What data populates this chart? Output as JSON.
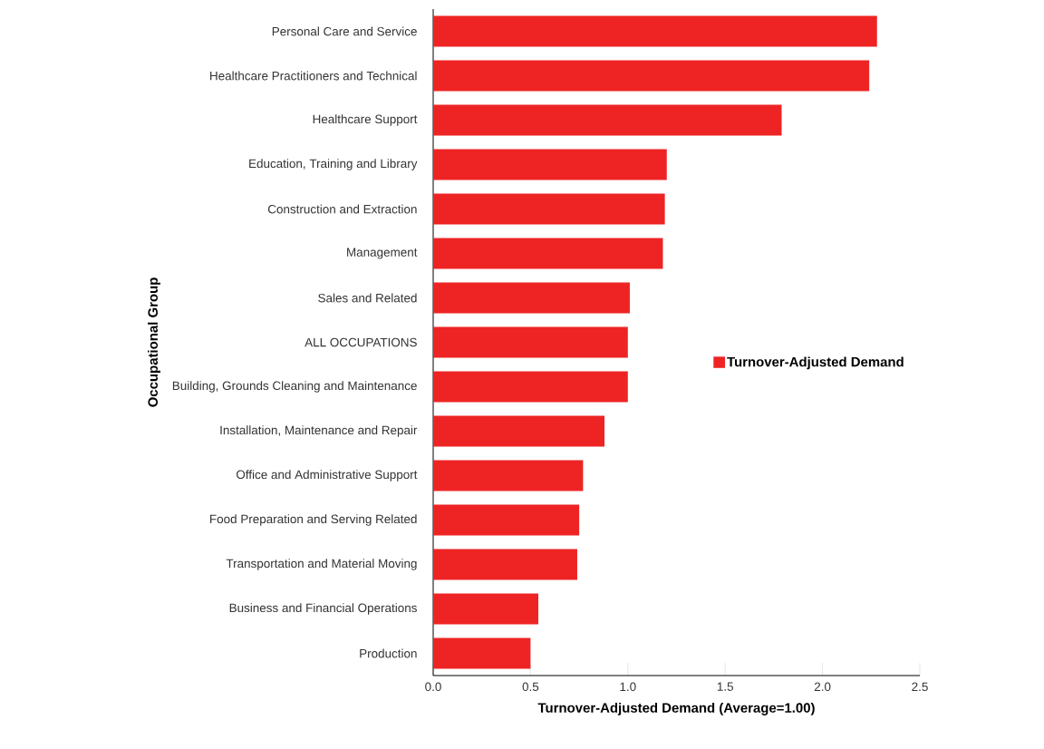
{
  "chart_data": {
    "type": "bar",
    "orientation": "horizontal",
    "xlabel": "Turnover-Adjusted Demand (Average=1.00)",
    "ylabel": "Occupational Group",
    "categories": [
      "Personal Care and Service",
      "Healthcare Practitioners and Technical",
      "Healthcare Support",
      "Education, Training and Library",
      "Construction and Extraction",
      "Management",
      "Sales and Related",
      "ALL OCCUPATIONS",
      "Building, Grounds Cleaning and Maintenance",
      "Installation, Maintenance and Repair",
      "Office and Administrative Support",
      "Food Preparation and Serving Related",
      "Transportation and Material Moving",
      "Business and Financial Operations",
      "Production"
    ],
    "series": [
      {
        "name": "Turnover-Adjusted Demand",
        "color": "#ee2424",
        "values": [
          2.28,
          2.24,
          1.79,
          1.2,
          1.19,
          1.18,
          1.01,
          1.0,
          1.0,
          0.88,
          0.77,
          0.75,
          0.74,
          0.54,
          0.5
        ]
      }
    ],
    "xlim": [
      0,
      2.5
    ],
    "xticks": [
      {
        "value": 0,
        "label": "0.0"
      },
      {
        "value": 0.5,
        "label": "0.5"
      },
      {
        "value": 1,
        "label": "1.0"
      },
      {
        "value": 1.5,
        "label": "1.5"
      },
      {
        "value": 2,
        "label": "2.0"
      },
      {
        "value": 2.5,
        "label": "2.5"
      }
    ],
    "legend": "right",
    "grid": false
  }
}
